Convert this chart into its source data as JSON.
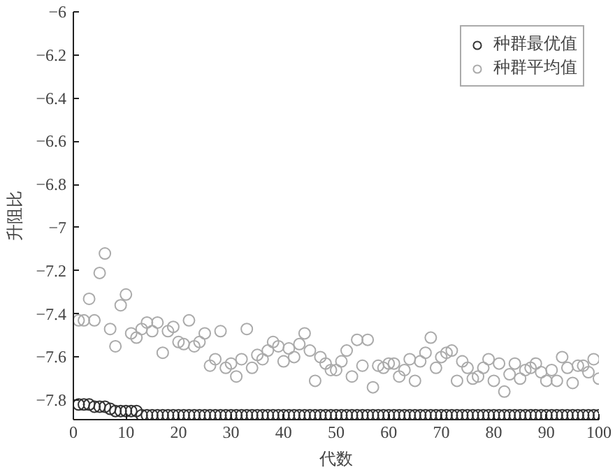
{
  "chart_data": {
    "type": "scatter",
    "xlabel": "代数",
    "ylabel": "升阻比",
    "x": [
      1,
      2,
      3,
      4,
      5,
      6,
      7,
      8,
      9,
      10,
      11,
      12,
      13,
      14,
      15,
      16,
      17,
      18,
      19,
      20,
      21,
      22,
      23,
      24,
      25,
      26,
      27,
      28,
      29,
      30,
      31,
      32,
      33,
      34,
      35,
      36,
      37,
      38,
      39,
      40,
      41,
      42,
      43,
      44,
      45,
      46,
      47,
      48,
      49,
      50,
      51,
      52,
      53,
      54,
      55,
      56,
      57,
      58,
      59,
      60,
      61,
      62,
      63,
      64,
      65,
      66,
      67,
      68,
      69,
      70,
      71,
      72,
      73,
      74,
      75,
      76,
      77,
      78,
      79,
      80,
      81,
      82,
      83,
      84,
      85,
      86,
      87,
      88,
      89,
      90,
      91,
      92,
      93,
      94,
      95,
      96,
      97,
      98,
      99,
      100
    ],
    "series": [
      {
        "name": "种群最优值",
        "color": "#333333",
        "values": [
          -7.82,
          -7.82,
          -7.82,
          -7.83,
          -7.83,
          -7.83,
          -7.84,
          -7.85,
          -7.85,
          -7.85,
          -7.85,
          -7.85,
          -7.87,
          -7.87,
          -7.87,
          -7.87,
          -7.87,
          -7.87,
          -7.87,
          -7.87,
          -7.87,
          -7.87,
          -7.87,
          -7.87,
          -7.87,
          -7.87,
          -7.87,
          -7.87,
          -7.87,
          -7.87,
          -7.87,
          -7.87,
          -7.87,
          -7.87,
          -7.87,
          -7.87,
          -7.87,
          -7.87,
          -7.87,
          -7.87,
          -7.87,
          -7.87,
          -7.87,
          -7.87,
          -7.87,
          -7.87,
          -7.87,
          -7.87,
          -7.87,
          -7.87,
          -7.87,
          -7.87,
          -7.87,
          -7.87,
          -7.87,
          -7.87,
          -7.87,
          -7.87,
          -7.87,
          -7.87,
          -7.87,
          -7.87,
          -7.87,
          -7.87,
          -7.87,
          -7.87,
          -7.87,
          -7.87,
          -7.87,
          -7.87,
          -7.87,
          -7.87,
          -7.87,
          -7.87,
          -7.87,
          -7.87,
          -7.87,
          -7.87,
          -7.87,
          -7.87,
          -7.87,
          -7.87,
          -7.87,
          -7.87,
          -7.87,
          -7.87,
          -7.87,
          -7.87,
          -7.87,
          -7.87,
          -7.87,
          -7.87,
          -7.87,
          -7.87,
          -7.87,
          -7.87,
          -7.87,
          -7.87,
          -7.87,
          -7.87
        ]
      },
      {
        "name": "种群平均值",
        "color": "#aaaaaa",
        "values": [
          -7.43,
          -7.43,
          -7.33,
          -7.43,
          -7.21,
          -7.12,
          -7.47,
          -7.55,
          -7.36,
          -7.31,
          -7.49,
          -7.51,
          -7.47,
          -7.44,
          -7.48,
          -7.44,
          -7.58,
          -7.48,
          -7.46,
          -7.53,
          -7.54,
          -7.43,
          -7.55,
          -7.53,
          -7.49,
          -7.64,
          -7.61,
          -7.48,
          -7.65,
          -7.63,
          -7.69,
          -7.61,
          -7.47,
          -7.65,
          -7.59,
          -7.61,
          -7.57,
          -7.53,
          -7.55,
          -7.62,
          -7.56,
          -7.6,
          -7.54,
          -7.49,
          -7.57,
          -7.71,
          -7.6,
          -7.63,
          -7.66,
          -7.66,
          -7.62,
          -7.57,
          -7.69,
          -7.52,
          -7.64,
          -7.52,
          -7.74,
          -7.64,
          -7.65,
          -7.63,
          -7.63,
          -7.69,
          -7.66,
          -7.61,
          -7.71,
          -7.62,
          -7.58,
          -7.51,
          -7.65,
          -7.6,
          -7.58,
          -7.57,
          -7.71,
          -7.62,
          -7.65,
          -7.7,
          -7.69,
          -7.65,
          -7.61,
          -7.71,
          -7.63,
          -7.76,
          -7.68,
          -7.63,
          -7.7,
          -7.66,
          -7.65,
          -7.63,
          -7.67,
          -7.71,
          -7.66,
          -7.71,
          -7.6,
          -7.65,
          -7.72,
          -7.64,
          -7.64,
          -7.67,
          -7.61,
          -7.7
        ]
      }
    ],
    "xlim": [
      0,
      100
    ],
    "ylim": [
      -7.89,
      -6
    ],
    "xticks": [
      0,
      10,
      20,
      30,
      40,
      50,
      60,
      70,
      80,
      90,
      100
    ],
    "yticks": [
      {
        "value": -6,
        "label": "−6"
      },
      {
        "value": -6.2,
        "label": "−6.2"
      },
      {
        "value": -6.4,
        "label": "−6.4"
      },
      {
        "value": -6.6,
        "label": "−6.6"
      },
      {
        "value": -6.8,
        "label": "−6.8"
      },
      {
        "value": -7,
        "label": "−7"
      },
      {
        "value": -7.2,
        "label": "−7.2"
      },
      {
        "value": -7.4,
        "label": "−7.4"
      },
      {
        "value": -7.6,
        "label": "−7.6"
      },
      {
        "value": -7.8,
        "label": "−7.8"
      }
    ],
    "marker": "circle",
    "legend": "top right",
    "grid": false
  }
}
